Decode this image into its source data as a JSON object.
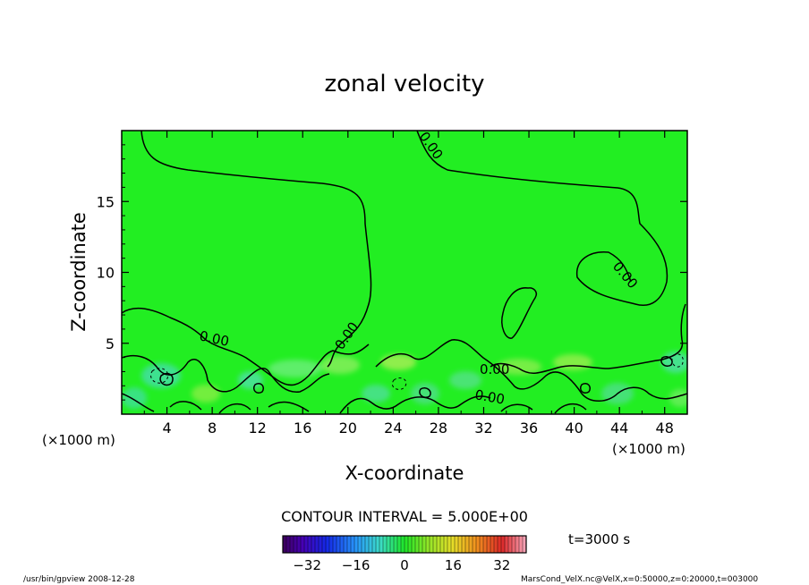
{
  "chart_data": {
    "type": "contour",
    "title": "zonal velocity",
    "xlabel": "X-coordinate",
    "ylabel": "Z-coordinate",
    "x_unit": "(×1000 m)",
    "y_unit": "(×1000 m)",
    "x_ticks": [
      4,
      8,
      12,
      16,
      20,
      24,
      28,
      32,
      36,
      40,
      44,
      48
    ],
    "y_ticks": [
      5,
      10,
      15
    ],
    "xlim": [
      0,
      50
    ],
    "ylim": [
      0,
      20
    ],
    "contour_interval_text": "CONTOUR INTERVAL = 5.000E+00",
    "contour_labels": [
      "0.00",
      "0.00",
      "0.00",
      "0.00",
      "0.00",
      "0.00",
      "0.00"
    ],
    "colorbar": {
      "ticks": [
        -32,
        -16,
        0,
        16,
        32
      ],
      "tick_labels": [
        "−32",
        "−16",
        "0",
        "16",
        "32"
      ],
      "range": [
        -40,
        40
      ]
    },
    "time_label": "t=3000 s",
    "footer_left": "/usr/bin/gpview   2008-12-28",
    "footer_right": "MarsCond_VelX.nc@VelX,x=0:50000,z=0:20000,t=003000",
    "colors": {
      "background_field": "#22ee22",
      "contour": "#000000"
    }
  }
}
